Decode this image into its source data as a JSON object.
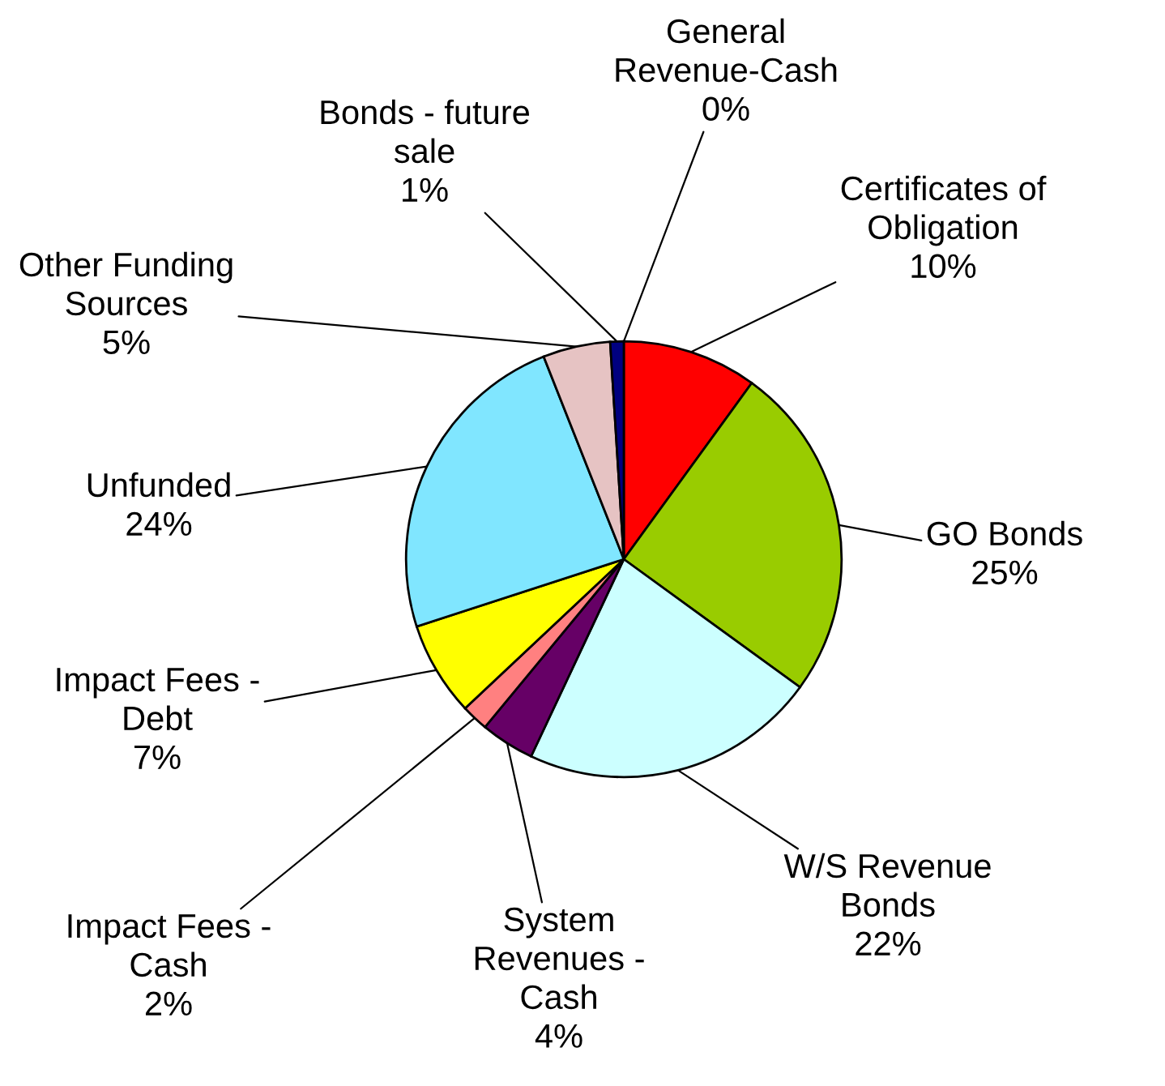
{
  "chart_data": {
    "type": "pie",
    "categories": [
      "General\nRevenue-Cash",
      "Certificates of\nObligation",
      "GO Bonds",
      "W/S Revenue\nBonds",
      "System\nRevenues -\nCash",
      "Impact Fees -\nCash",
      "Impact Fees -\nDebt",
      "Unfunded",
      "Other Funding\nSources",
      "Bonds - future\nsale"
    ],
    "values": [
      0,
      10,
      25,
      22,
      4,
      2,
      7,
      24,
      5,
      1
    ],
    "value_labels": [
      "0%",
      "10%",
      "25%",
      "22%",
      "4%",
      "2%",
      "7%",
      "24%",
      "5%",
      "1%"
    ],
    "colors": [
      "#000000",
      "#ff0000",
      "#99cc00",
      "#ccffff",
      "#660066",
      "#ff8080",
      "#ffff00",
      "#80e6ff",
      "#e6c3c3",
      "#000080"
    ]
  }
}
